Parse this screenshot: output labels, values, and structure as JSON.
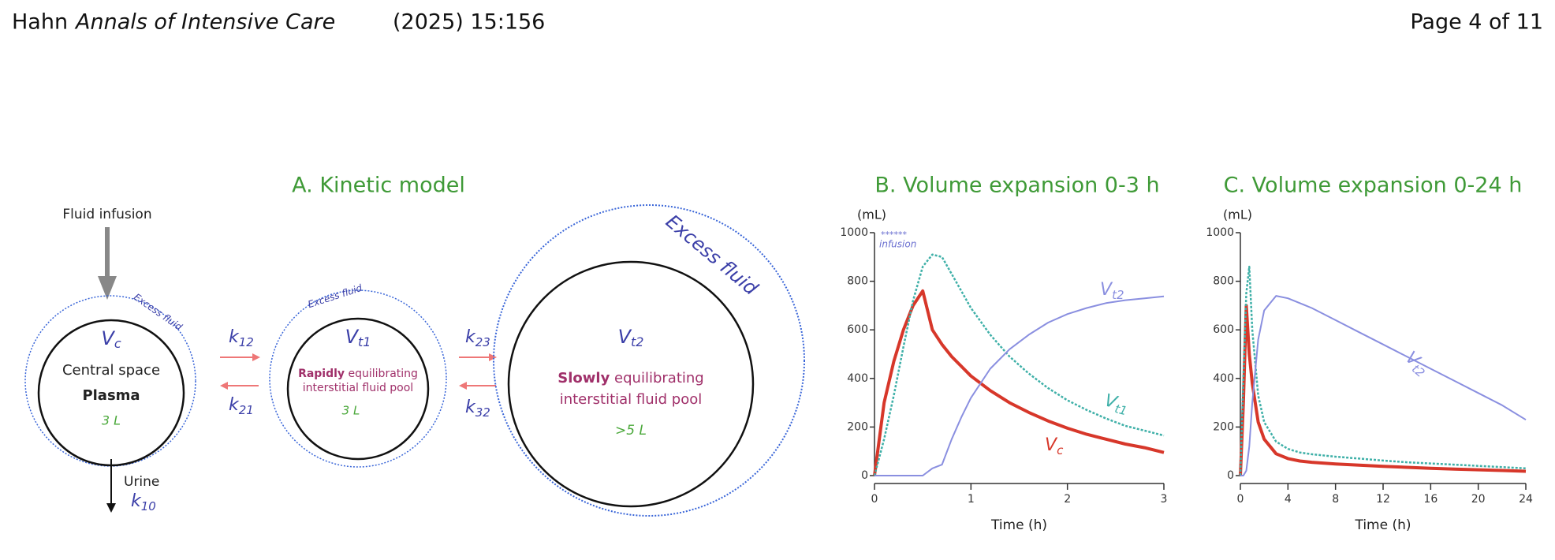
{
  "header": {
    "author": "Hahn",
    "journal": "Annals of Intensive Care",
    "citation": "(2025) 15:156",
    "page": "Page 4 of 11"
  },
  "panel_a": {
    "title": "A. Kinetic model",
    "infusion": "Fluid infusion",
    "excess_fluid_central": "Excess fluid",
    "vc": {
      "main": "V",
      "sub": "c"
    },
    "central_space": "Central space",
    "plasma": "Plasma",
    "central_volume": "3 L",
    "urine": "Urine",
    "k10": {
      "main": "k",
      "sub": "10"
    },
    "k12": {
      "main": "k",
      "sub": "12"
    },
    "k21": {
      "main": "k",
      "sub": "21"
    },
    "excess_fluid_rapid": "Excess fluid",
    "vt1": {
      "main": "V",
      "sub": "t1"
    },
    "rapid_pool": {
      "bold": "Rapidly",
      "rest": " equilibrating",
      "line2": "interstitial fluid pool"
    },
    "rapid_volume": "3 L",
    "k23": {
      "main": "k",
      "sub": "23"
    },
    "k32": {
      "main": "k",
      "sub": "32"
    },
    "vt2": {
      "main": "V",
      "sub": "t2"
    },
    "slow_pool": {
      "bold": "Slowly",
      "rest": " equilibrating",
      "line2": "interstitial fluid pool"
    },
    "slow_volume": ">5 L",
    "excess_fluid_slow": "Excess fluid"
  },
  "chart_data": [
    {
      "type": "line",
      "title": "B.  Volume expansion 0-3 h",
      "ylabel": "(mL)",
      "xlabel": "Time (h)",
      "annotation": {
        "stars": "******",
        "text": "infusion"
      },
      "x": [
        0,
        0.1,
        0.2,
        0.3,
        0.4,
        0.5,
        0.6,
        0.7,
        0.8,
        0.9,
        1,
        1.2,
        1.4,
        1.6,
        1.8,
        2,
        2.2,
        2.4,
        2.6,
        2.8,
        3
      ],
      "xlim": [
        0,
        3
      ],
      "xticks": [
        0,
        1,
        2,
        3
      ],
      "ylim": [
        0,
        1000
      ],
      "yticks": [
        0,
        200,
        400,
        600,
        800,
        1000
      ],
      "series": [
        {
          "name": "Vc",
          "color": "#d7372a",
          "values": [
            0,
            300,
            470,
            600,
            700,
            760,
            600,
            540,
            490,
            450,
            410,
            350,
            300,
            260,
            225,
            195,
            170,
            150,
            130,
            115,
            95
          ]
        },
        {
          "name": "Vt1",
          "color": "#3fb0a8",
          "values": [
            0,
            150,
            330,
            530,
            720,
            860,
            910,
            900,
            830,
            760,
            690,
            580,
            490,
            420,
            360,
            310,
            270,
            235,
            205,
            185,
            165
          ]
        },
        {
          "name": "Vt2",
          "color": "#8a8fe0",
          "values": [
            0,
            0,
            0,
            0,
            0,
            0,
            30,
            45,
            150,
            240,
            320,
            440,
            520,
            580,
            630,
            665,
            690,
            710,
            722,
            730,
            738
          ]
        }
      ]
    },
    {
      "type": "line",
      "title": "C.  Volume expansion 0-24 h",
      "ylabel": "(mL)",
      "xlabel": "Time (h)",
      "x": [
        0,
        0.25,
        0.5,
        0.75,
        1,
        1.5,
        2,
        3,
        4,
        5,
        6,
        8,
        10,
        12,
        14,
        16,
        18,
        20,
        22,
        24
      ],
      "xlim": [
        0,
        24
      ],
      "xticks": [
        0,
        4,
        8,
        12,
        16,
        20,
        24
      ],
      "ylim": [
        0,
        1000
      ],
      "yticks": [
        0,
        200,
        400,
        600,
        800,
        1000
      ],
      "series": [
        {
          "color": "#d7372a",
          "values": [
            0,
            300,
            700,
            500,
            380,
            220,
            150,
            90,
            70,
            60,
            55,
            48,
            43,
            38,
            34,
            30,
            27,
            24,
            21,
            18
          ]
        },
        {
          "color": "#3fb0a8",
          "values": [
            0,
            400,
            750,
            860,
            600,
            330,
            220,
            140,
            110,
            95,
            88,
            78,
            70,
            62,
            55,
            50,
            45,
            40,
            35,
            30
          ]
        },
        {
          "name": "Vt2",
          "color": "#8a8fe0",
          "values": [
            0,
            0,
            20,
            120,
            300,
            560,
            680,
            740,
            730,
            710,
            690,
            640,
            590,
            540,
            490,
            440,
            390,
            340,
            290,
            230
          ]
        }
      ]
    }
  ]
}
